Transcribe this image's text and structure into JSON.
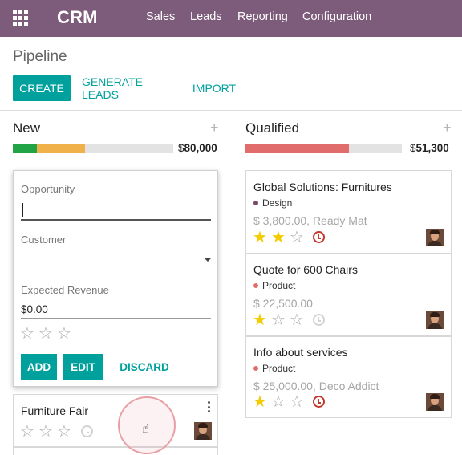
{
  "navbar": {
    "apps_icon": "grid-icon",
    "brand": "CRM",
    "menu": [
      "Sales",
      "Leads",
      "Reporting",
      "Configuration"
    ]
  },
  "control_panel": {
    "breadcrumb": "Pipeline",
    "create_label": "CREATE",
    "generate_leads_label": "GENERATE LEADS",
    "import_label": "IMPORT"
  },
  "columns": [
    {
      "title": "New",
      "add_icon": "plus-icon",
      "currency": "$",
      "total": "80,000",
      "progress": [
        {
          "fraction": 0.15,
          "color": "#21a446"
        },
        {
          "fraction": 0.3,
          "color": "#f0b14b"
        },
        {
          "fraction": 0.55,
          "color": "#e3e3e3"
        }
      ]
    },
    {
      "title": "Qualified",
      "add_icon": "plus-icon",
      "currency": "$",
      "total": "51,300",
      "progress": [
        {
          "fraction": 0.66,
          "color": "#e06c6c"
        },
        {
          "fraction": 0.34,
          "color": "#e3e3e3"
        }
      ]
    }
  ],
  "quick_create": {
    "opportunity_label": "Opportunity",
    "opportunity_value": "",
    "customer_label": "Customer",
    "customer_value": "",
    "revenue_label": "Expected Revenue",
    "revenue_value": "$0.00",
    "priority_stars": 0,
    "add_label": "ADD",
    "edit_label": "EDIT",
    "discard_label": "DISCARD"
  },
  "new_cards": [
    {
      "title": "Furniture Fair",
      "stars": 0,
      "activity": "none",
      "has_avatar": true,
      "has_menu": true
    }
  ],
  "qualified_cards": [
    {
      "title": "Global Solutions: Furnitures",
      "tag": "Design",
      "tag_color": "#7a4a6b",
      "subtitle": "$ 3,800.00, Ready Mat",
      "stars": 2,
      "activity": "late"
    },
    {
      "title": "Quote for 600 Chairs",
      "tag": "Product",
      "tag_color": "#e06c6c",
      "subtitle": "$ 22,500.00",
      "stars": 1,
      "activity": "none"
    },
    {
      "title": "Info about services",
      "tag": "Product",
      "tag_color": "#e06c6c",
      "subtitle": "$ 25,000.00, Deco Addict",
      "stars": 1,
      "activity": "late"
    }
  ],
  "colors": {
    "navbar": "#7d5b7a",
    "primary": "#00a09d",
    "star_on": "#f3cc00",
    "star_off": "#a8a8a8"
  }
}
